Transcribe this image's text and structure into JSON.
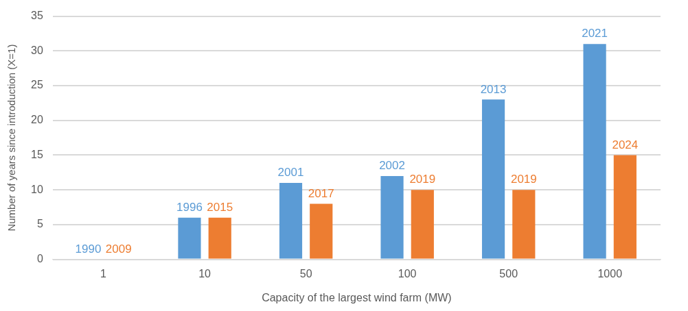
{
  "chart_data": {
    "type": "bar",
    "xlabel": "Capacity of the largest wind farm (MW)",
    "ylabel": "Number of years since introduction (X=1)",
    "categories": [
      "1",
      "10",
      "50",
      "100",
      "500",
      "1000"
    ],
    "series": [
      {
        "color": "#5b9bd5",
        "values": [
          0,
          6,
          11,
          12,
          23,
          31
        ]
      },
      {
        "color": "#ed7d31",
        "values": [
          0,
          6,
          8,
          10,
          10,
          15
        ]
      }
    ],
    "annotations": [
      "1990",
      "1996",
      "2001",
      "2002",
      "2013",
      "2021",
      "2009",
      "2015",
      "2017",
      "2019",
      "2019",
      "2024"
    ],
    "ylim": [
      0,
      35
    ],
    "yticks": [
      0,
      5,
      10,
      15,
      20,
      25,
      30,
      35
    ],
    "grid": "y",
    "legend": false
  }
}
